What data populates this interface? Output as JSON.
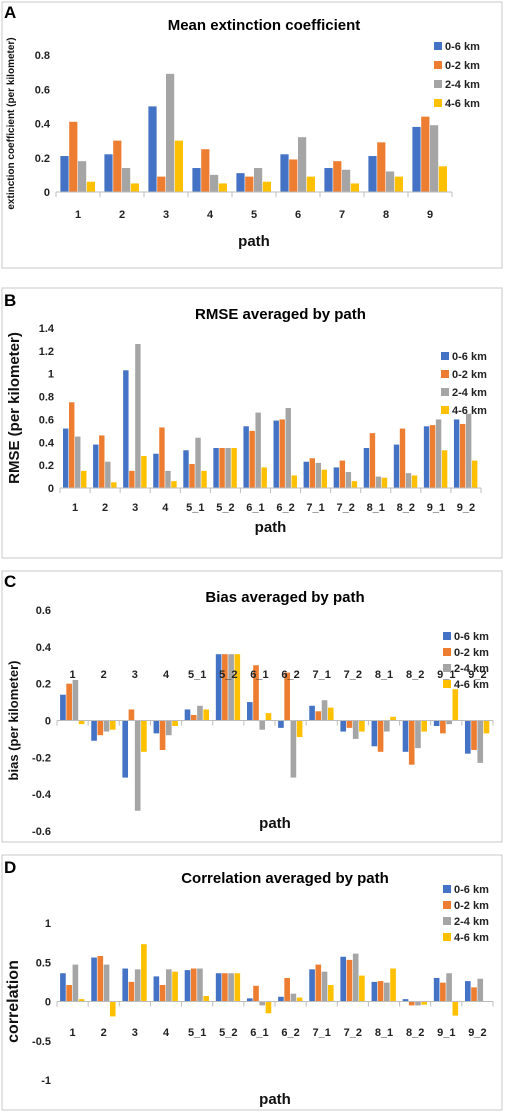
{
  "chart_data": [
    {
      "letter": "A",
      "type": "bar",
      "title": "Mean extinction coefficient",
      "xlabel": "path",
      "ylabel": "extinction coefficient (per kilometer)",
      "ylim": [
        0,
        0.8
      ],
      "yticks": [
        "0",
        "0.2",
        "0.4",
        "0.6",
        "0.8"
      ],
      "yticks_values": [
        0,
        0.2,
        0.4,
        0.6,
        0.8
      ],
      "grid": false,
      "legend": "top-right",
      "categories": [
        "1",
        "2",
        "3",
        "4",
        "5",
        "6",
        "7",
        "8",
        "9"
      ],
      "series": [
        {
          "name": "0-6 km",
          "color": "#4472C4",
          "values": [
            0.21,
            0.22,
            0.5,
            0.14,
            0.11,
            0.22,
            0.14,
            0.21,
            0.38
          ]
        },
        {
          "name": "0-2 km",
          "color": "#ED7D31",
          "values": [
            0.41,
            0.3,
            0.09,
            0.25,
            0.09,
            0.19,
            0.18,
            0.29,
            0.44
          ]
        },
        {
          "name": "2-4 km",
          "color": "#A5A5A5",
          "values": [
            0.18,
            0.14,
            0.69,
            0.1,
            0.14,
            0.32,
            0.13,
            0.12,
            0.39
          ]
        },
        {
          "name": "4-6 km",
          "color": "#FFC000",
          "values": [
            0.06,
            0.05,
            0.3,
            0.05,
            0.06,
            0.09,
            0.05,
            0.09,
            0.15
          ]
        }
      ]
    },
    {
      "letter": "B",
      "type": "bar",
      "title": "RMSE averaged by path",
      "xlabel": "path",
      "ylabel": "RMSE (per kilometer)",
      "ylim": [
        0,
        1.4
      ],
      "yticks": [
        "0",
        "0.2",
        "0.4",
        "0.6",
        "0.8",
        "1",
        "1.2",
        "1.4"
      ],
      "yticks_values": [
        0,
        0.2,
        0.4,
        0.6,
        0.8,
        1.0,
        1.2,
        1.4
      ],
      "grid": false,
      "legend": "top-right",
      "categories": [
        "1",
        "2",
        "3",
        "4",
        "5_1",
        "5_2",
        "6_1",
        "6_2",
        "7_1",
        "7_2",
        "8_1",
        "8_2",
        "9_1",
        "9_2"
      ],
      "series": [
        {
          "name": "0-6 km",
          "color": "#4472C4",
          "values": [
            0.52,
            0.38,
            1.03,
            0.3,
            0.33,
            0.35,
            0.54,
            0.59,
            0.23,
            0.18,
            0.35,
            0.38,
            0.54,
            0.6
          ]
        },
        {
          "name": "0-2 km",
          "color": "#ED7D31",
          "values": [
            0.75,
            0.46,
            0.15,
            0.53,
            0.21,
            0.35,
            0.5,
            0.6,
            0.26,
            0.24,
            0.48,
            0.52,
            0.55,
            0.56
          ]
        },
        {
          "name": "2-4 km",
          "color": "#A5A5A5",
          "values": [
            0.45,
            0.23,
            1.26,
            0.15,
            0.44,
            0.35,
            0.66,
            0.7,
            0.22,
            0.14,
            0.1,
            0.13,
            0.6,
            0.65
          ]
        },
        {
          "name": "4-6 km",
          "color": "#FFC000",
          "values": [
            0.15,
            0.05,
            0.28,
            0.06,
            0.15,
            0.35,
            0.18,
            0.11,
            0.16,
            0.06,
            0.09,
            0.11,
            0.33,
            0.24
          ]
        }
      ]
    },
    {
      "letter": "C",
      "type": "bar",
      "title": "Bias averaged by path",
      "xlabel": "path",
      "ylabel": "bias (per kilometer)",
      "ylim": [
        -0.6,
        0.6
      ],
      "yticks": [
        "-0.6",
        "-0.4",
        "-0.2",
        "0",
        "0.2",
        "0.4",
        "0.6"
      ],
      "yticks_values": [
        -0.6,
        -0.4,
        -0.2,
        0,
        0.2,
        0.4,
        0.6
      ],
      "grid": false,
      "legend": "top-right",
      "categories": [
        "1",
        "2",
        "3",
        "4",
        "5_1",
        "5_2",
        "6_1",
        "6_2",
        "7_1",
        "7_2",
        "8_1",
        "8_2",
        "9_1",
        "9_2"
      ],
      "series": [
        {
          "name": "0-6 km",
          "color": "#4472C4",
          "values": [
            0.14,
            -0.11,
            -0.31,
            -0.07,
            0.06,
            0.36,
            0.1,
            -0.04,
            0.08,
            -0.06,
            -0.14,
            -0.17,
            -0.03,
            -0.18
          ]
        },
        {
          "name": "0-2 km",
          "color": "#ED7D31",
          "values": [
            0.2,
            -0.08,
            0.06,
            -0.16,
            0.03,
            0.36,
            0.3,
            0.26,
            0.05,
            -0.04,
            -0.17,
            -0.24,
            -0.07,
            -0.16
          ]
        },
        {
          "name": "2-4 km",
          "color": "#A5A5A5",
          "values": [
            0.22,
            -0.06,
            -0.49,
            -0.08,
            0.08,
            0.36,
            -0.05,
            -0.31,
            0.11,
            -0.1,
            -0.06,
            -0.15,
            -0.02,
            -0.23
          ]
        },
        {
          "name": "4-6 km",
          "color": "#FFC000",
          "values": [
            -0.02,
            -0.05,
            -0.17,
            -0.03,
            0.06,
            0.36,
            0.04,
            -0.09,
            0.07,
            -0.06,
            0.02,
            -0.06,
            0.17,
            -0.07
          ]
        }
      ]
    },
    {
      "letter": "D",
      "type": "bar",
      "title": "Correlation averaged by path",
      "xlabel": "path",
      "ylabel": "correlation",
      "ylim": [
        -1,
        1
      ],
      "yticks": [
        "-1",
        "-0.5",
        "0",
        "0.5",
        "1"
      ],
      "yticks_values": [
        -1,
        -0.5,
        0,
        0.5,
        1
      ],
      "grid": false,
      "legend": "top-right",
      "categories": [
        "1",
        "2",
        "3",
        "4",
        "5_1",
        "5_2",
        "6_1",
        "6_2",
        "7_1",
        "7_2",
        "8_1",
        "8_2",
        "9_1",
        "9_2"
      ],
      "series": [
        {
          "name": "0-6 km",
          "color": "#4472C4",
          "values": [
            0.36,
            0.56,
            0.42,
            0.32,
            0.4,
            0.36,
            0.04,
            0.06,
            0.41,
            0.57,
            0.25,
            0.03,
            0.3,
            0.26
          ]
        },
        {
          "name": "0-2 km",
          "color": "#ED7D31",
          "values": [
            0.21,
            0.58,
            0.25,
            0.21,
            0.42,
            0.36,
            0.2,
            0.3,
            0.47,
            0.53,
            0.26,
            -0.05,
            0.24,
            0.18
          ]
        },
        {
          "name": "2-4 km",
          "color": "#A5A5A5",
          "values": [
            0.47,
            0.47,
            0.41,
            0.41,
            0.42,
            0.36,
            -0.05,
            0.1,
            0.38,
            0.61,
            0.24,
            -0.05,
            0.36,
            0.29
          ]
        },
        {
          "name": "4-6 km",
          "color": "#FFC000",
          "values": [
            0.03,
            -0.19,
            0.73,
            0.38,
            0.07,
            0.36,
            -0.15,
            0.05,
            0.21,
            0.33,
            0.42,
            -0.04,
            -0.18,
            0.0
          ]
        }
      ]
    }
  ]
}
